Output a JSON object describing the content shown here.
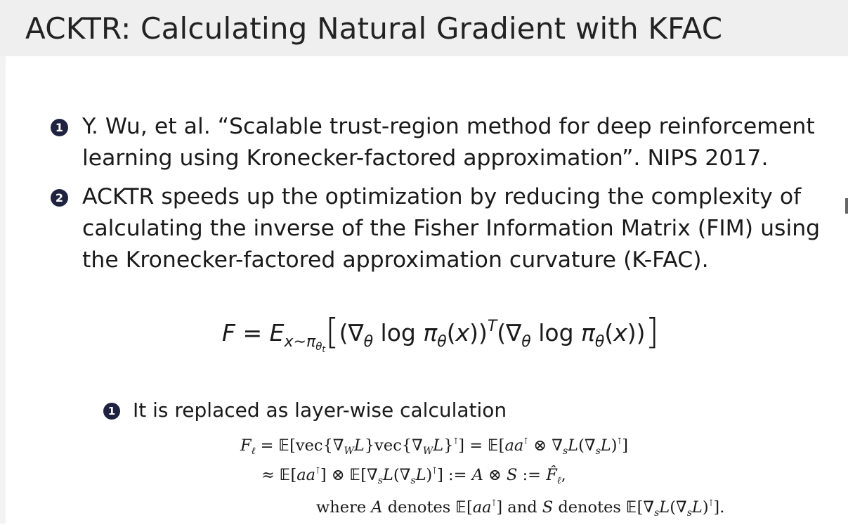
{
  "slide": {
    "title": "ACKTR: Calculating Natural Gradient with KFAC"
  },
  "items": [
    {
      "number": "1",
      "lines": [
        "Y. Wu, et al.  “Scalable trust-region method for deep reinforcement",
        "learning using Kronecker-factored approximation”. NIPS 2017."
      ]
    },
    {
      "number": "2",
      "lines": [
        "ACKTR speeds up the optimization by reducing the complexity of",
        "calculating the inverse of the Fisher Information Matrix (FIM) using",
        "the Kronecker-factored approximation curvature (K-FAC)."
      ]
    }
  ],
  "sub_item": {
    "number": "1",
    "text": "It is replaced as layer-wise calculation"
  },
  "equations": {
    "fisher_main": "F = E_{x~π_θt} [(∇_θ log π_θ(x))^T (∇_θ log π_θ(x))]",
    "kfac_line1": "F_ℓ = E[vec{∇_W L}vec{∇_W L}^T] = E[aa^T ⊗ ∇_s L(∇_s L)^T]",
    "kfac_line2": "≈ E[aa^T] ⊗ E[∇_s L(∇_s L)^T] := A ⊗ S := F̂_ℓ,",
    "kfac_line3": "where A denotes E[aa^T] and S denotes E[∇_s L(∇_s L)^T]."
  }
}
